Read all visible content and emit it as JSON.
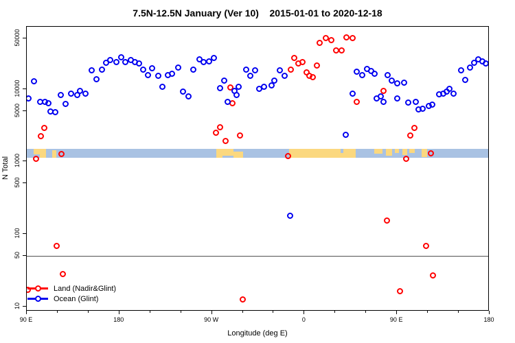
{
  "chart_data": {
    "type": "scatter",
    "title": "7.5N-12.5N January (Ver 10)    2015-01-01 to 2020-12-18",
    "xlabel": "Longitude (deg E)",
    "ylabel": "N Total",
    "x_axis": {
      "xlim": [
        90,
        540
      ],
      "major_ticks": [
        {
          "lon": 90,
          "label": "90 E"
        },
        {
          "lon": 180,
          "label": "180"
        },
        {
          "lon": 270,
          "label": "90 W"
        },
        {
          "lon": 360,
          "label": "0"
        },
        {
          "lon": 450,
          "label": "90 E"
        },
        {
          "lon": 540,
          "label": "180"
        }
      ],
      "minor_tick_step": 30
    },
    "y_axis": {
      "scale": "log",
      "ylim": [
        8.6,
        72000
      ],
      "ticks": [
        10,
        50,
        100,
        500,
        1000,
        5000,
        10000,
        50000
      ]
    },
    "reference_line_y": 50,
    "map_strip": {
      "y_top_value": 1500,
      "y_bottom_value": 1130,
      "ocean_color": "#A9C2E3",
      "land_color": "#FBD87F",
      "land_segments": [
        [
          97,
          103,
          0,
          0.6
        ],
        [
          103,
          109,
          0,
          1
        ],
        [
          115,
          119,
          0.2,
          0.8
        ],
        [
          274,
          280,
          0,
          1
        ],
        [
          280,
          291,
          0,
          0.8
        ],
        [
          291,
          300,
          0.3,
          0.7
        ],
        [
          345,
          395,
          0,
          1
        ],
        [
          395,
          398,
          0.45,
          0.55
        ],
        [
          398,
          410,
          0,
          1
        ],
        [
          428,
          436,
          0,
          0.55
        ],
        [
          439,
          445,
          0,
          0.8
        ],
        [
          448,
          452,
          0,
          0.5
        ],
        [
          455,
          460,
          0,
          0.7
        ],
        [
          462,
          467,
          0,
          0.5
        ],
        [
          474,
          479,
          0,
          0.9
        ]
      ]
    },
    "series": [
      {
        "name": "Land (Nadir&Glint)",
        "color": "#FF0000",
        "points": [
          [
            91,
            17
          ],
          [
            99,
            1100
          ],
          [
            104,
            2220
          ],
          [
            107,
            2880
          ],
          [
            119,
            68
          ],
          [
            124,
            1260
          ],
          [
            125,
            28
          ],
          [
            274,
            2480
          ],
          [
            278,
            3000
          ],
          [
            283,
            1900
          ],
          [
            288,
            10450
          ],
          [
            290,
            6300
          ],
          [
            297,
            2280
          ],
          [
            300,
            12.7
          ],
          [
            344,
            1200
          ],
          [
            347,
            18400
          ],
          [
            350,
            26700
          ],
          [
            354,
            22400
          ],
          [
            358,
            23400
          ],
          [
            362,
            16800
          ],
          [
            365,
            15100
          ],
          [
            368,
            14500
          ],
          [
            372,
            20900
          ],
          [
            375,
            43000
          ],
          [
            381,
            50000
          ],
          [
            386,
            47000
          ],
          [
            391,
            34000
          ],
          [
            396,
            34000
          ],
          [
            401,
            51000
          ],
          [
            407,
            50000
          ],
          [
            411,
            6700
          ],
          [
            437,
            9400
          ],
          [
            440,
            155
          ],
          [
            453,
            16.5
          ],
          [
            459,
            1100
          ],
          [
            463,
            2280
          ],
          [
            467,
            2880
          ],
          [
            478,
            68
          ],
          [
            483,
            1290
          ],
          [
            485,
            27
          ]
        ]
      },
      {
        "name": "Ocean (Glint)",
        "color": "#0000F0",
        "points": [
          [
            97,
            12700
          ],
          [
            92,
            7400
          ],
          [
            103,
            6700
          ],
          [
            108,
            6700
          ],
          [
            111,
            6300
          ],
          [
            113,
            4900
          ],
          [
            118,
            4800
          ],
          [
            123,
            8200
          ],
          [
            128,
            6200
          ],
          [
            133,
            8600
          ],
          [
            139,
            8200
          ],
          [
            142,
            9500
          ],
          [
            147,
            8600
          ],
          [
            153,
            18000
          ],
          [
            158,
            13700
          ],
          [
            163,
            18400
          ],
          [
            167,
            22900
          ],
          [
            171,
            24900
          ],
          [
            177,
            23400
          ],
          [
            182,
            27300
          ],
          [
            186,
            23400
          ],
          [
            191,
            24900
          ],
          [
            195,
            23400
          ],
          [
            199,
            22400
          ],
          [
            203,
            18400
          ],
          [
            208,
            15400
          ],
          [
            212,
            19200
          ],
          [
            218,
            15100
          ],
          [
            222,
            10700
          ],
          [
            227,
            15400
          ],
          [
            231,
            16100
          ],
          [
            237,
            19600
          ],
          [
            242,
            9200
          ],
          [
            247,
            7900
          ],
          [
            252,
            18400
          ],
          [
            258,
            25500
          ],
          [
            262,
            23400
          ],
          [
            267,
            23900
          ],
          [
            272,
            26700
          ],
          [
            278,
            10200
          ],
          [
            282,
            12900
          ],
          [
            285,
            6600
          ],
          [
            292,
            9400
          ],
          [
            294,
            8200
          ],
          [
            296,
            10700
          ],
          [
            303,
            18400
          ],
          [
            307,
            15100
          ],
          [
            312,
            18000
          ],
          [
            316,
            10000
          ],
          [
            321,
            10700
          ],
          [
            328,
            11200
          ],
          [
            331,
            12900
          ],
          [
            336,
            18000
          ],
          [
            341,
            15100
          ],
          [
            346,
            181
          ],
          [
            400,
            2320
          ],
          [
            407,
            8600
          ],
          [
            411,
            17200
          ],
          [
            416,
            15400
          ],
          [
            421,
            18800
          ],
          [
            425,
            17600
          ],
          [
            428,
            16100
          ],
          [
            430,
            7400
          ],
          [
            434,
            7900
          ],
          [
            437,
            6700
          ],
          [
            441,
            15400
          ],
          [
            445,
            12900
          ],
          [
            450,
            12000
          ],
          [
            450,
            7400
          ],
          [
            457,
            12300
          ],
          [
            461,
            6450
          ],
          [
            468,
            6700
          ],
          [
            471,
            5200
          ],
          [
            475,
            5300
          ],
          [
            481,
            5800
          ],
          [
            484,
            6100
          ],
          [
            491,
            8400
          ],
          [
            495,
            8600
          ],
          [
            498,
            9200
          ],
          [
            501,
            10000
          ],
          [
            505,
            8600
          ],
          [
            512,
            18000
          ],
          [
            516,
            13400
          ],
          [
            521,
            19600
          ],
          [
            525,
            22900
          ],
          [
            529,
            25500
          ],
          [
            533,
            23900
          ],
          [
            536,
            22400
          ]
        ]
      }
    ],
    "legend": {
      "position": "bottom-left",
      "items": [
        "Land (Nadir&Glint)",
        "Ocean (Glint)"
      ]
    }
  }
}
